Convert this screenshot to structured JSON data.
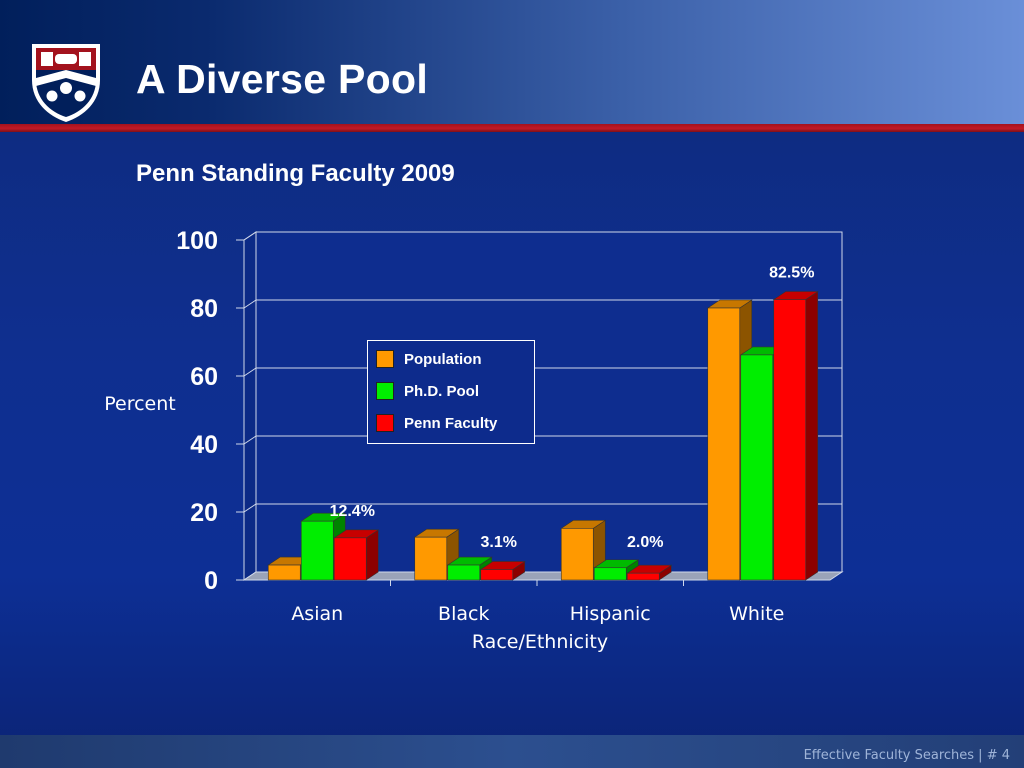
{
  "slide": {
    "title": "A Diverse Pool",
    "subtitle": "Penn Standing Faculty 2009",
    "footer": "Effective Faculty Searches | # 4"
  },
  "colors": {
    "header_dark": "#011f5b",
    "accent_red": "#c21a26",
    "background": "#0f2f8f",
    "population": "#ff9900",
    "phd_pool": "#00ee00",
    "penn_faculty": "#ff0000"
  },
  "chart_data": {
    "type": "bar",
    "title": "Penn Standing Faculty 2009",
    "xlabel": "Race/Ethnicity",
    "ylabel": "Percent",
    "ylim": [
      0,
      100
    ],
    "yticks": [
      0,
      20,
      40,
      60,
      80,
      100
    ],
    "categories": [
      "Asian",
      "Black",
      "Hispanic",
      "White"
    ],
    "series": [
      {
        "name": "Population",
        "color": "#ff9900",
        "values": [
          4.4,
          12.6,
          15.2,
          80.0
        ]
      },
      {
        "name": "Ph.D. Pool",
        "color": "#00ee00",
        "values": [
          17.3,
          4.4,
          3.6,
          66.2
        ]
      },
      {
        "name": "Penn Faculty",
        "color": "#ff0000",
        "values": [
          12.4,
          3.1,
          2.0,
          82.5
        ]
      }
    ],
    "data_labels": [
      {
        "text": "12.4%",
        "category": "Asian",
        "series": "Penn Faculty"
      },
      {
        "text": "3.1%",
        "category": "Black",
        "series": "Penn Faculty"
      },
      {
        "text": "2.0%",
        "category": "Hispanic",
        "series": "Penn Faculty"
      },
      {
        "text": "82.5%",
        "category": "White",
        "series": "Penn Faculty"
      }
    ],
    "legend_position": "center-left",
    "grid": true,
    "style": "3d"
  }
}
